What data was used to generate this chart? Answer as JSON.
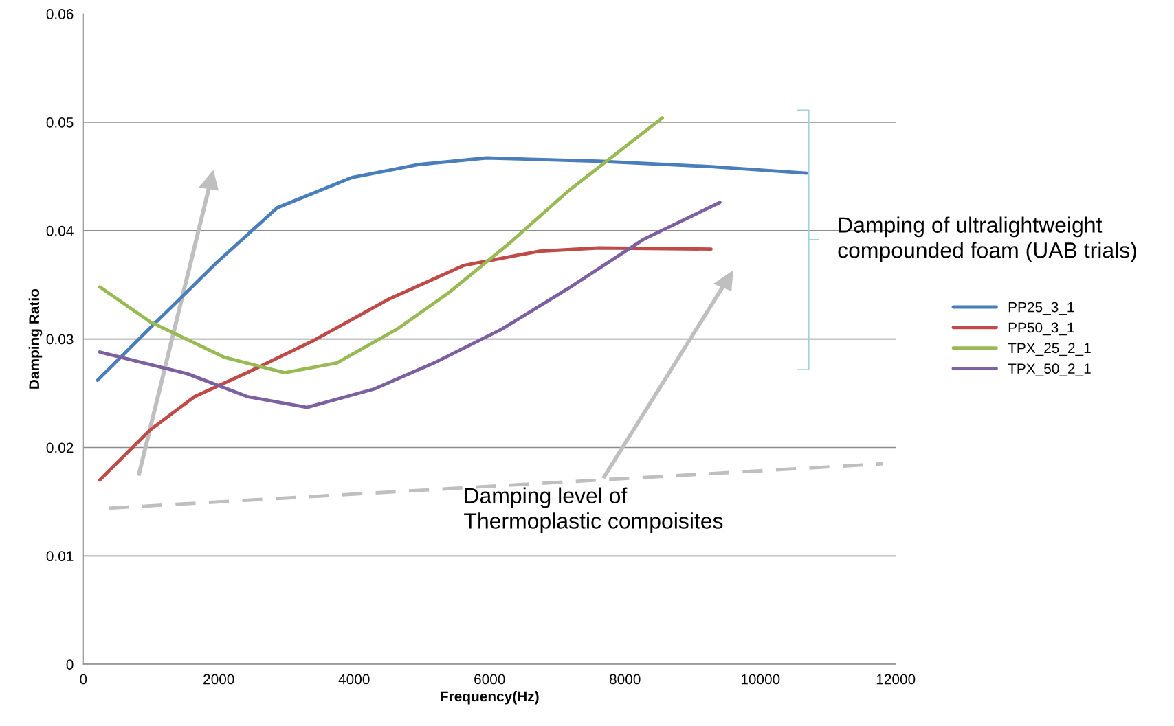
{
  "chart_data": {
    "type": "line",
    "xlabel": "Frequency(Hz)",
    "ylabel": "Damping Ratio",
    "xlim": [
      0,
      12000
    ],
    "xticks": [
      0,
      2000,
      4000,
      6000,
      8000,
      10000,
      12000
    ],
    "ylim": [
      0,
      0.06
    ],
    "yticks": [
      0,
      0.01,
      0.02,
      0.03,
      0.04,
      0.05,
      0.06
    ],
    "grid": "y",
    "legend": "right",
    "marker": "none",
    "series": [
      {
        "name": "PP25_3_1",
        "color": "#4a7ebb",
        "x": [
          210,
          983,
          1978,
          2862,
          3967,
          4961,
          5956,
          7613,
          9271,
          10685
        ],
        "values": [
          0.0262,
          0.031,
          0.0371,
          0.0421,
          0.0449,
          0.0461,
          0.0467,
          0.0464,
          0.0459,
          0.0453
        ]
      },
      {
        "name": "PP50_3_1",
        "color": "#be4b48",
        "x": [
          243,
          983,
          1646,
          2420,
          3414,
          4519,
          5624,
          6729,
          7613,
          9271
        ],
        "values": [
          0.017,
          0.0216,
          0.0247,
          0.0269,
          0.0299,
          0.0337,
          0.0368,
          0.0381,
          0.0384,
          0.0383
        ]
      },
      {
        "name": "TPX_25_2_1",
        "color": "#98b954",
        "x": [
          243,
          983,
          2088,
          2972,
          3746,
          4630,
          5403,
          6287,
          7171,
          8552
        ],
        "values": [
          0.0348,
          0.0316,
          0.0283,
          0.0269,
          0.0278,
          0.0309,
          0.0343,
          0.0388,
          0.0437,
          0.0504
        ]
      },
      {
        "name": "TPX_50_2_1",
        "color": "#7d60a0",
        "x": [
          243,
          1536,
          2420,
          3304,
          4298,
          5182,
          6177,
          7171,
          8276,
          9403
        ],
        "values": [
          0.0288,
          0.0268,
          0.0247,
          0.0237,
          0.0254,
          0.0278,
          0.0309,
          0.0347,
          0.0392,
          0.0426
        ]
      },
      {
        "color": "#bfbfbf",
        "line_style": "dashed",
        "x": [
          376,
          11812
        ],
        "values": [
          0.0144,
          0.0185
        ]
      }
    ],
    "annotations": [
      "Damping of ultralightweight\ncompounded foam (UAB trials)",
      "Damping level of\nThermoplastic compoisites"
    ]
  }
}
